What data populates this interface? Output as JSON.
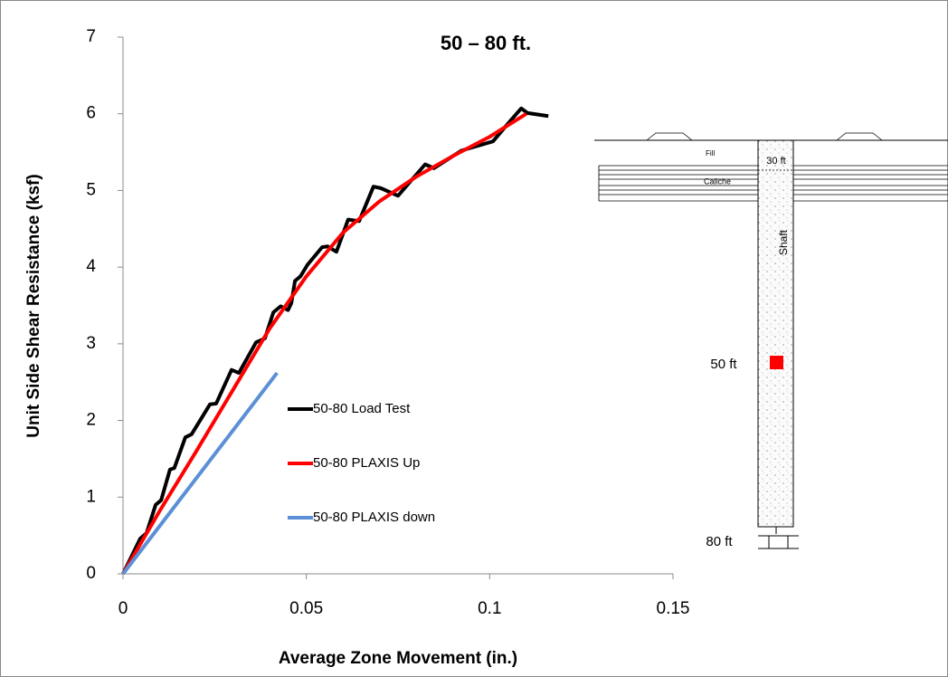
{
  "chart_data": {
    "type": "line",
    "title": "50 – 80 ft.",
    "x_label": "Average Zone Movement (in.)",
    "y_label": "Unit Side Shear Resistance (ksf)",
    "xlim": [
      0,
      0.15
    ],
    "xticks": [
      0,
      0.05,
      0.1,
      0.15
    ],
    "ylim": [
      0,
      7
    ],
    "yticks": [
      0,
      1,
      2,
      3,
      4,
      5,
      6,
      7
    ],
    "grid": false,
    "series": [
      {
        "name": "50-80 Load Test",
        "color": "#000000",
        "x": [
          0,
          0.0047,
          0.0064,
          0.0089,
          0.0104,
          0.0128,
          0.014,
          0.017,
          0.0187,
          0.0237,
          0.0254,
          0.0296,
          0.0316,
          0.0363,
          0.0387,
          0.041,
          0.043,
          0.045,
          0.0459,
          0.0469,
          0.0484,
          0.0503,
          0.0543,
          0.0558,
          0.0582,
          0.0614,
          0.0644,
          0.0683,
          0.0703,
          0.075,
          0.0824,
          0.0848,
          0.0923,
          0.1009,
          0.1046,
          0.1086,
          0.1103,
          0.116
        ],
        "values": [
          0,
          0.46,
          0.53,
          0.9,
          0.96,
          1.36,
          1.38,
          1.78,
          1.82,
          2.21,
          2.22,
          2.66,
          2.62,
          3.02,
          3.07,
          3.41,
          3.49,
          3.44,
          3.53,
          3.82,
          3.88,
          4.03,
          4.26,
          4.27,
          4.2,
          4.62,
          4.6,
          5.05,
          5.03,
          4.93,
          5.34,
          5.29,
          5.52,
          5.64,
          5.85,
          6.07,
          6.01,
          5.97
        ]
      },
      {
        "name": "50-80 PLAXIS Up",
        "color": "#ff0000",
        "x": [
          0,
          0.01,
          0.02,
          0.03,
          0.04,
          0.05,
          0.06,
          0.07,
          0.08,
          0.09,
          0.1,
          0.11
        ],
        "values": [
          0,
          0.82,
          1.6,
          2.4,
          3.2,
          3.88,
          4.45,
          4.86,
          5.18,
          5.45,
          5.7,
          6.0
        ]
      },
      {
        "name": "50-80 PLAXIS down",
        "color": "#5b8fd6",
        "x": [
          0,
          0.042
        ],
        "values": [
          0,
          2.62
        ]
      }
    ],
    "annotations": [
      "Fill",
      "30 ft",
      "Caliche",
      "Shaft",
      "50 ft",
      "80 ft"
    ]
  }
}
